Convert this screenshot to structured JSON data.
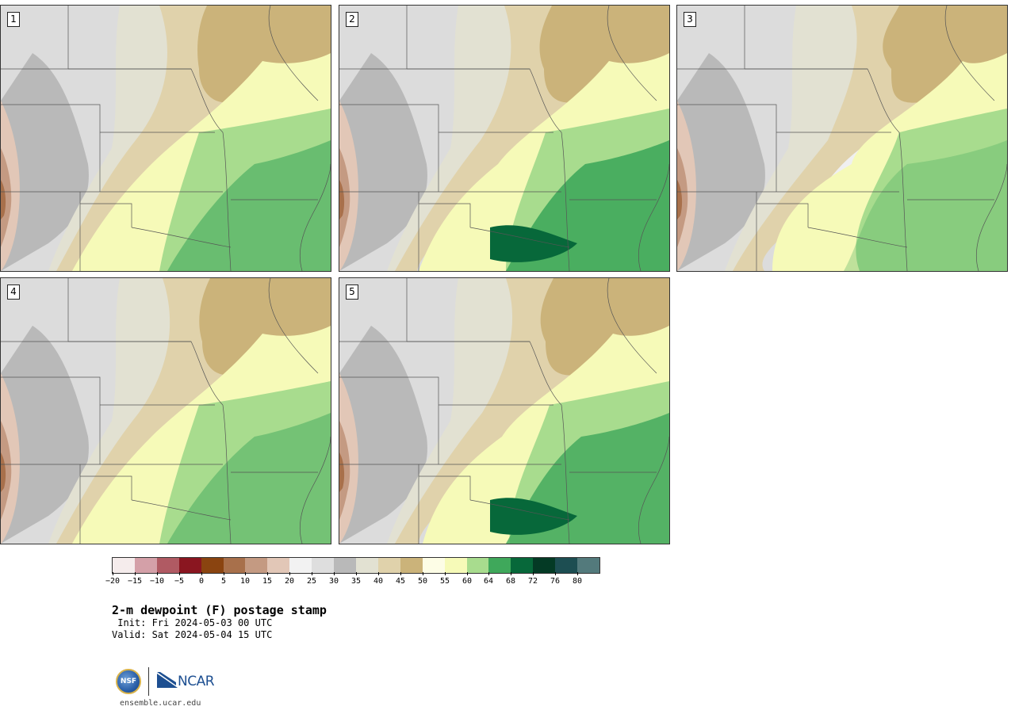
{
  "panels": [
    {
      "number": "1",
      "variant": "a"
    },
    {
      "number": "2",
      "variant": "b"
    },
    {
      "number": "3",
      "variant": "c"
    },
    {
      "number": "4",
      "variant": "d"
    },
    {
      "number": "5",
      "variant": "e"
    }
  ],
  "colorbar": {
    "colors": [
      "#f5ecec",
      "#d4a0a8",
      "#b05a63",
      "#8a1620",
      "#8a4410",
      "#a8704b",
      "#c49a82",
      "#e2c7b7",
      "#f2f2f2",
      "#dedede",
      "#b9b9b9",
      "#e2e1d2",
      "#e0d2ab",
      "#cbb37a",
      "#fdfde6",
      "#f6fab8",
      "#a8dc8e",
      "#3fa85b",
      "#07683a",
      "#043a25",
      "#1d4e52",
      "#537a7c"
    ],
    "tick_labels": [
      "−20",
      "−15",
      "−10",
      "−5",
      "0",
      "5",
      "10",
      "15",
      "20",
      "25",
      "30",
      "35",
      "40",
      "45",
      "50",
      "55",
      "60",
      "64",
      "68",
      "72",
      "76",
      "80"
    ]
  },
  "title": "2-m dewpoint (F) postage stamp",
  "init": " Init: Fri 2024-05-03 00 UTC",
  "valid": "Valid: Sat 2024-05-04 15 UTC",
  "logo": {
    "nsf_text": "NSF",
    "ncar_text": "NCAR"
  },
  "site": "ensemble.ucar.edu"
}
